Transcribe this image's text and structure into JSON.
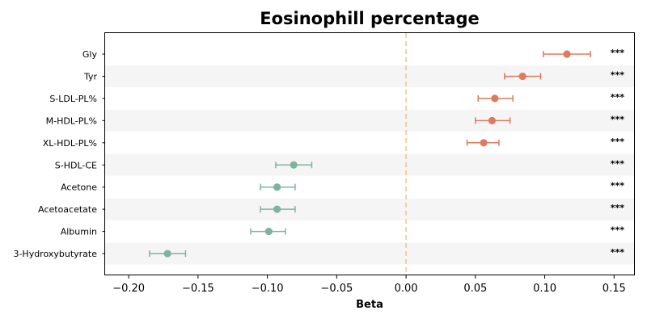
{
  "chart_data": {
    "type": "forest",
    "title": "Eosinophill percentage",
    "xlabel": "Beta",
    "ylabel": "",
    "xlim": [
      -0.217,
      0.165
    ],
    "xticks": [
      -0.2,
      -0.15,
      -0.1,
      -0.05,
      0.0,
      0.05,
      0.1,
      0.15
    ],
    "xtick_labels": [
      "−0.20",
      "−0.15",
      "−0.10",
      "−0.05",
      "0.00",
      "0.05",
      "0.10",
      "0.15"
    ],
    "reference_line": 0.0,
    "reference_line_color": "#f2c28c",
    "positive_color": "#dd7a5f",
    "negative_color": "#7fb39b",
    "row_band_color": "#f5f5f5",
    "grid": false,
    "legend": "none",
    "rows": [
      {
        "label": "Gly",
        "beta": 0.116,
        "lower": 0.099,
        "upper": 0.133,
        "significance": "***"
      },
      {
        "label": "Tyr",
        "beta": 0.084,
        "lower": 0.071,
        "upper": 0.097,
        "significance": "***"
      },
      {
        "label": "S-LDL-PL%",
        "beta": 0.064,
        "lower": 0.052,
        "upper": 0.077,
        "significance": "***"
      },
      {
        "label": "M-HDL-PL%",
        "beta": 0.062,
        "lower": 0.05,
        "upper": 0.075,
        "significance": "***"
      },
      {
        "label": "XL-HDL-PL%",
        "beta": 0.056,
        "lower": 0.044,
        "upper": 0.067,
        "significance": "***"
      },
      {
        "label": "S-HDL-CE",
        "beta": -0.081,
        "lower": -0.094,
        "upper": -0.068,
        "significance": "***"
      },
      {
        "label": "Acetone",
        "beta": -0.093,
        "lower": -0.105,
        "upper": -0.08,
        "significance": "***"
      },
      {
        "label": "Acetoacetate",
        "beta": -0.093,
        "lower": -0.105,
        "upper": -0.08,
        "significance": "***"
      },
      {
        "label": "Albumin",
        "beta": -0.099,
        "lower": -0.112,
        "upper": -0.087,
        "significance": "***"
      },
      {
        "label": "3-Hydroxybutyrate",
        "beta": -0.172,
        "lower": -0.185,
        "upper": -0.159,
        "significance": "***"
      }
    ]
  }
}
